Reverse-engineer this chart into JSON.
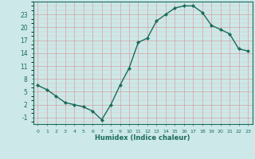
{
  "x": [
    0,
    1,
    2,
    3,
    4,
    5,
    6,
    7,
    8,
    9,
    10,
    11,
    12,
    13,
    14,
    15,
    16,
    17,
    18,
    19,
    20,
    21,
    22,
    23
  ],
  "y": [
    6.5,
    5.5,
    4.0,
    2.5,
    2.0,
    1.5,
    0.5,
    -1.5,
    2.0,
    6.5,
    10.5,
    16.5,
    17.5,
    21.5,
    23.0,
    24.5,
    25.0,
    25.0,
    23.5,
    20.5,
    19.5,
    18.5,
    15.0,
    14.5
  ],
  "xlabel": "Humidex (Indice chaleur)",
  "yticks": [
    -1,
    2,
    5,
    8,
    11,
    14,
    17,
    20,
    23
  ],
  "xticks": [
    0,
    1,
    2,
    3,
    4,
    5,
    6,
    7,
    8,
    9,
    10,
    11,
    12,
    13,
    14,
    15,
    16,
    17,
    18,
    19,
    20,
    21,
    22,
    23
  ],
  "line_color": "#1a6b5a",
  "marker_color": "#1a6b5a",
  "bg_color": "#cce8e8",
  "ylim": [
    -2.5,
    26
  ],
  "xlim": [
    -0.5,
    23.5
  ]
}
